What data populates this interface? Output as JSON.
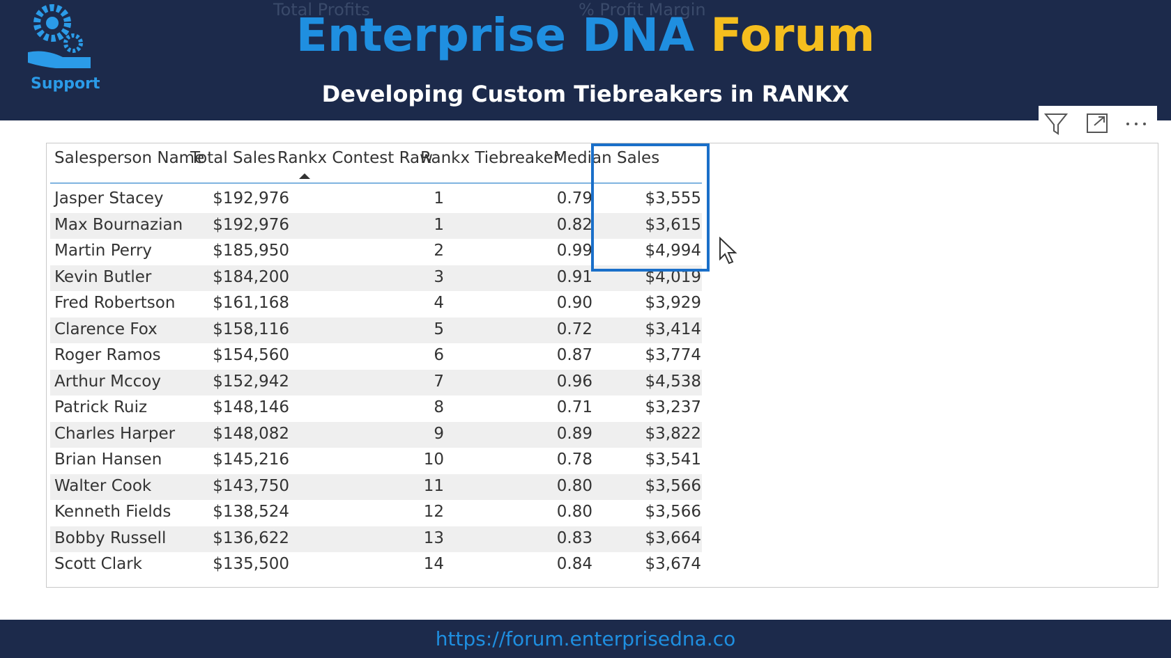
{
  "header": {
    "logo_label": "Support",
    "title_part1": "Enterprise DNA",
    "title_part2": "Forum",
    "subtitle": "Developing Custom Tiebreakers in RANKX",
    "background_labels": [
      "Total Profits",
      "% Profit Margin"
    ]
  },
  "table": {
    "columns": [
      "Salesperson Name",
      "Total Sales",
      "Rankx Contest Raw",
      "Rankx Tiebreaker",
      "Median Sales"
    ],
    "rows": [
      [
        "Jasper Stacey",
        "$192,976",
        "1",
        "0.79",
        "$3,555"
      ],
      [
        "Max Bournazian",
        "$192,976",
        "1",
        "0.82",
        "$3,615"
      ],
      [
        "Martin Perry",
        "$185,950",
        "2",
        "0.99",
        "$4,994"
      ],
      [
        "Kevin Butler",
        "$184,200",
        "3",
        "0.91",
        "$4,019"
      ],
      [
        "Fred Robertson",
        "$161,168",
        "4",
        "0.90",
        "$3,929"
      ],
      [
        "Clarence Fox",
        "$158,116",
        "5",
        "0.72",
        "$3,414"
      ],
      [
        "Roger Ramos",
        "$154,560",
        "6",
        "0.87",
        "$3,774"
      ],
      [
        "Arthur Mccoy",
        "$152,942",
        "7",
        "0.96",
        "$4,538"
      ],
      [
        "Patrick Ruiz",
        "$148,146",
        "8",
        "0.71",
        "$3,237"
      ],
      [
        "Charles Harper",
        "$148,082",
        "9",
        "0.89",
        "$3,822"
      ],
      [
        "Brian Hansen",
        "$145,216",
        "10",
        "0.78",
        "$3,541"
      ],
      [
        "Walter Cook",
        "$143,750",
        "11",
        "0.80",
        "$3,566"
      ],
      [
        "Kenneth Fields",
        "$138,524",
        "12",
        "0.80",
        "$3,566"
      ],
      [
        "Bobby Russell",
        "$136,622",
        "13",
        "0.83",
        "$3,664"
      ],
      [
        "Scott Clark",
        "$135,500",
        "14",
        "0.84",
        "$3,674"
      ]
    ]
  },
  "footer": {
    "url": "https://forum.enterprisedna.co"
  }
}
